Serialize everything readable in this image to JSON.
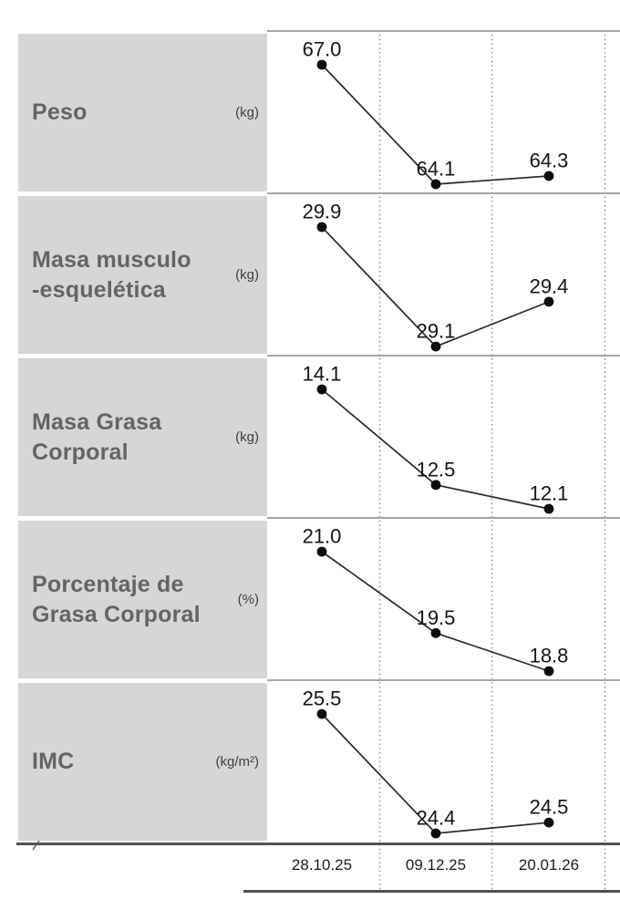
{
  "axis": {
    "dates": [
      "28.10.25",
      "09.12.25",
      "20.01.26"
    ]
  },
  "colors": {
    "label_box": "#d6d6d6",
    "title_text": "#646464",
    "unit_text": "#3f3f3f",
    "separator": "#a6a6a6",
    "heavy_line": "#525252",
    "dotted_gridline": "#8f8f8f",
    "data_line": "#2b2b2b",
    "data_point": "#0d0d0d",
    "value_label": "#151515",
    "date_label": "#1c1c1c"
  },
  "chart_data": [
    {
      "type": "line",
      "title": "Peso",
      "unit": "(kg)",
      "x": [
        "28.10.25",
        "09.12.25",
        "20.01.26"
      ],
      "values": [
        67.0,
        64.1,
        64.3
      ],
      "value_labels": [
        "67.0",
        "64.1",
        "64.3"
      ],
      "ylim": [
        64.1,
        67.0
      ],
      "grid": "dotted-vertical",
      "legend": "none"
    },
    {
      "type": "line",
      "title": "Masa musculo\n-esquelética",
      "unit": "(kg)",
      "x": [
        "28.10.25",
        "09.12.25",
        "20.01.26"
      ],
      "values": [
        29.9,
        29.1,
        29.4
      ],
      "value_labels": [
        "29.9",
        "29.1",
        "29.4"
      ],
      "ylim": [
        29.1,
        29.9
      ],
      "grid": "dotted-vertical",
      "legend": "none"
    },
    {
      "type": "line",
      "title": "Masa Grasa\nCorporal",
      "unit": "(kg)",
      "x": [
        "28.10.25",
        "09.12.25",
        "20.01.26"
      ],
      "values": [
        14.1,
        12.5,
        12.1
      ],
      "value_labels": [
        "14.1",
        "12.5",
        "12.1"
      ],
      "ylim": [
        12.1,
        14.1
      ],
      "grid": "dotted-vertical",
      "legend": "none"
    },
    {
      "type": "line",
      "title": "Porcentaje de\nGrasa Corporal",
      "unit": "(%)",
      "x": [
        "28.10.25",
        "09.12.25",
        "20.01.26"
      ],
      "values": [
        21.0,
        19.5,
        18.8
      ],
      "value_labels": [
        "21.0",
        "19.5",
        "18.8"
      ],
      "ylim": [
        18.8,
        21.0
      ],
      "grid": "dotted-vertical",
      "legend": "none"
    },
    {
      "type": "line",
      "title": "IMC",
      "unit": "(kg/m²)",
      "x": [
        "28.10.25",
        "09.12.25",
        "20.01.26"
      ],
      "values": [
        25.5,
        24.4,
        24.5
      ],
      "value_labels": [
        "25.5",
        "24.4",
        "24.5"
      ],
      "ylim": [
        24.4,
        25.5
      ],
      "grid": "dotted-vertical",
      "legend": "none"
    }
  ]
}
